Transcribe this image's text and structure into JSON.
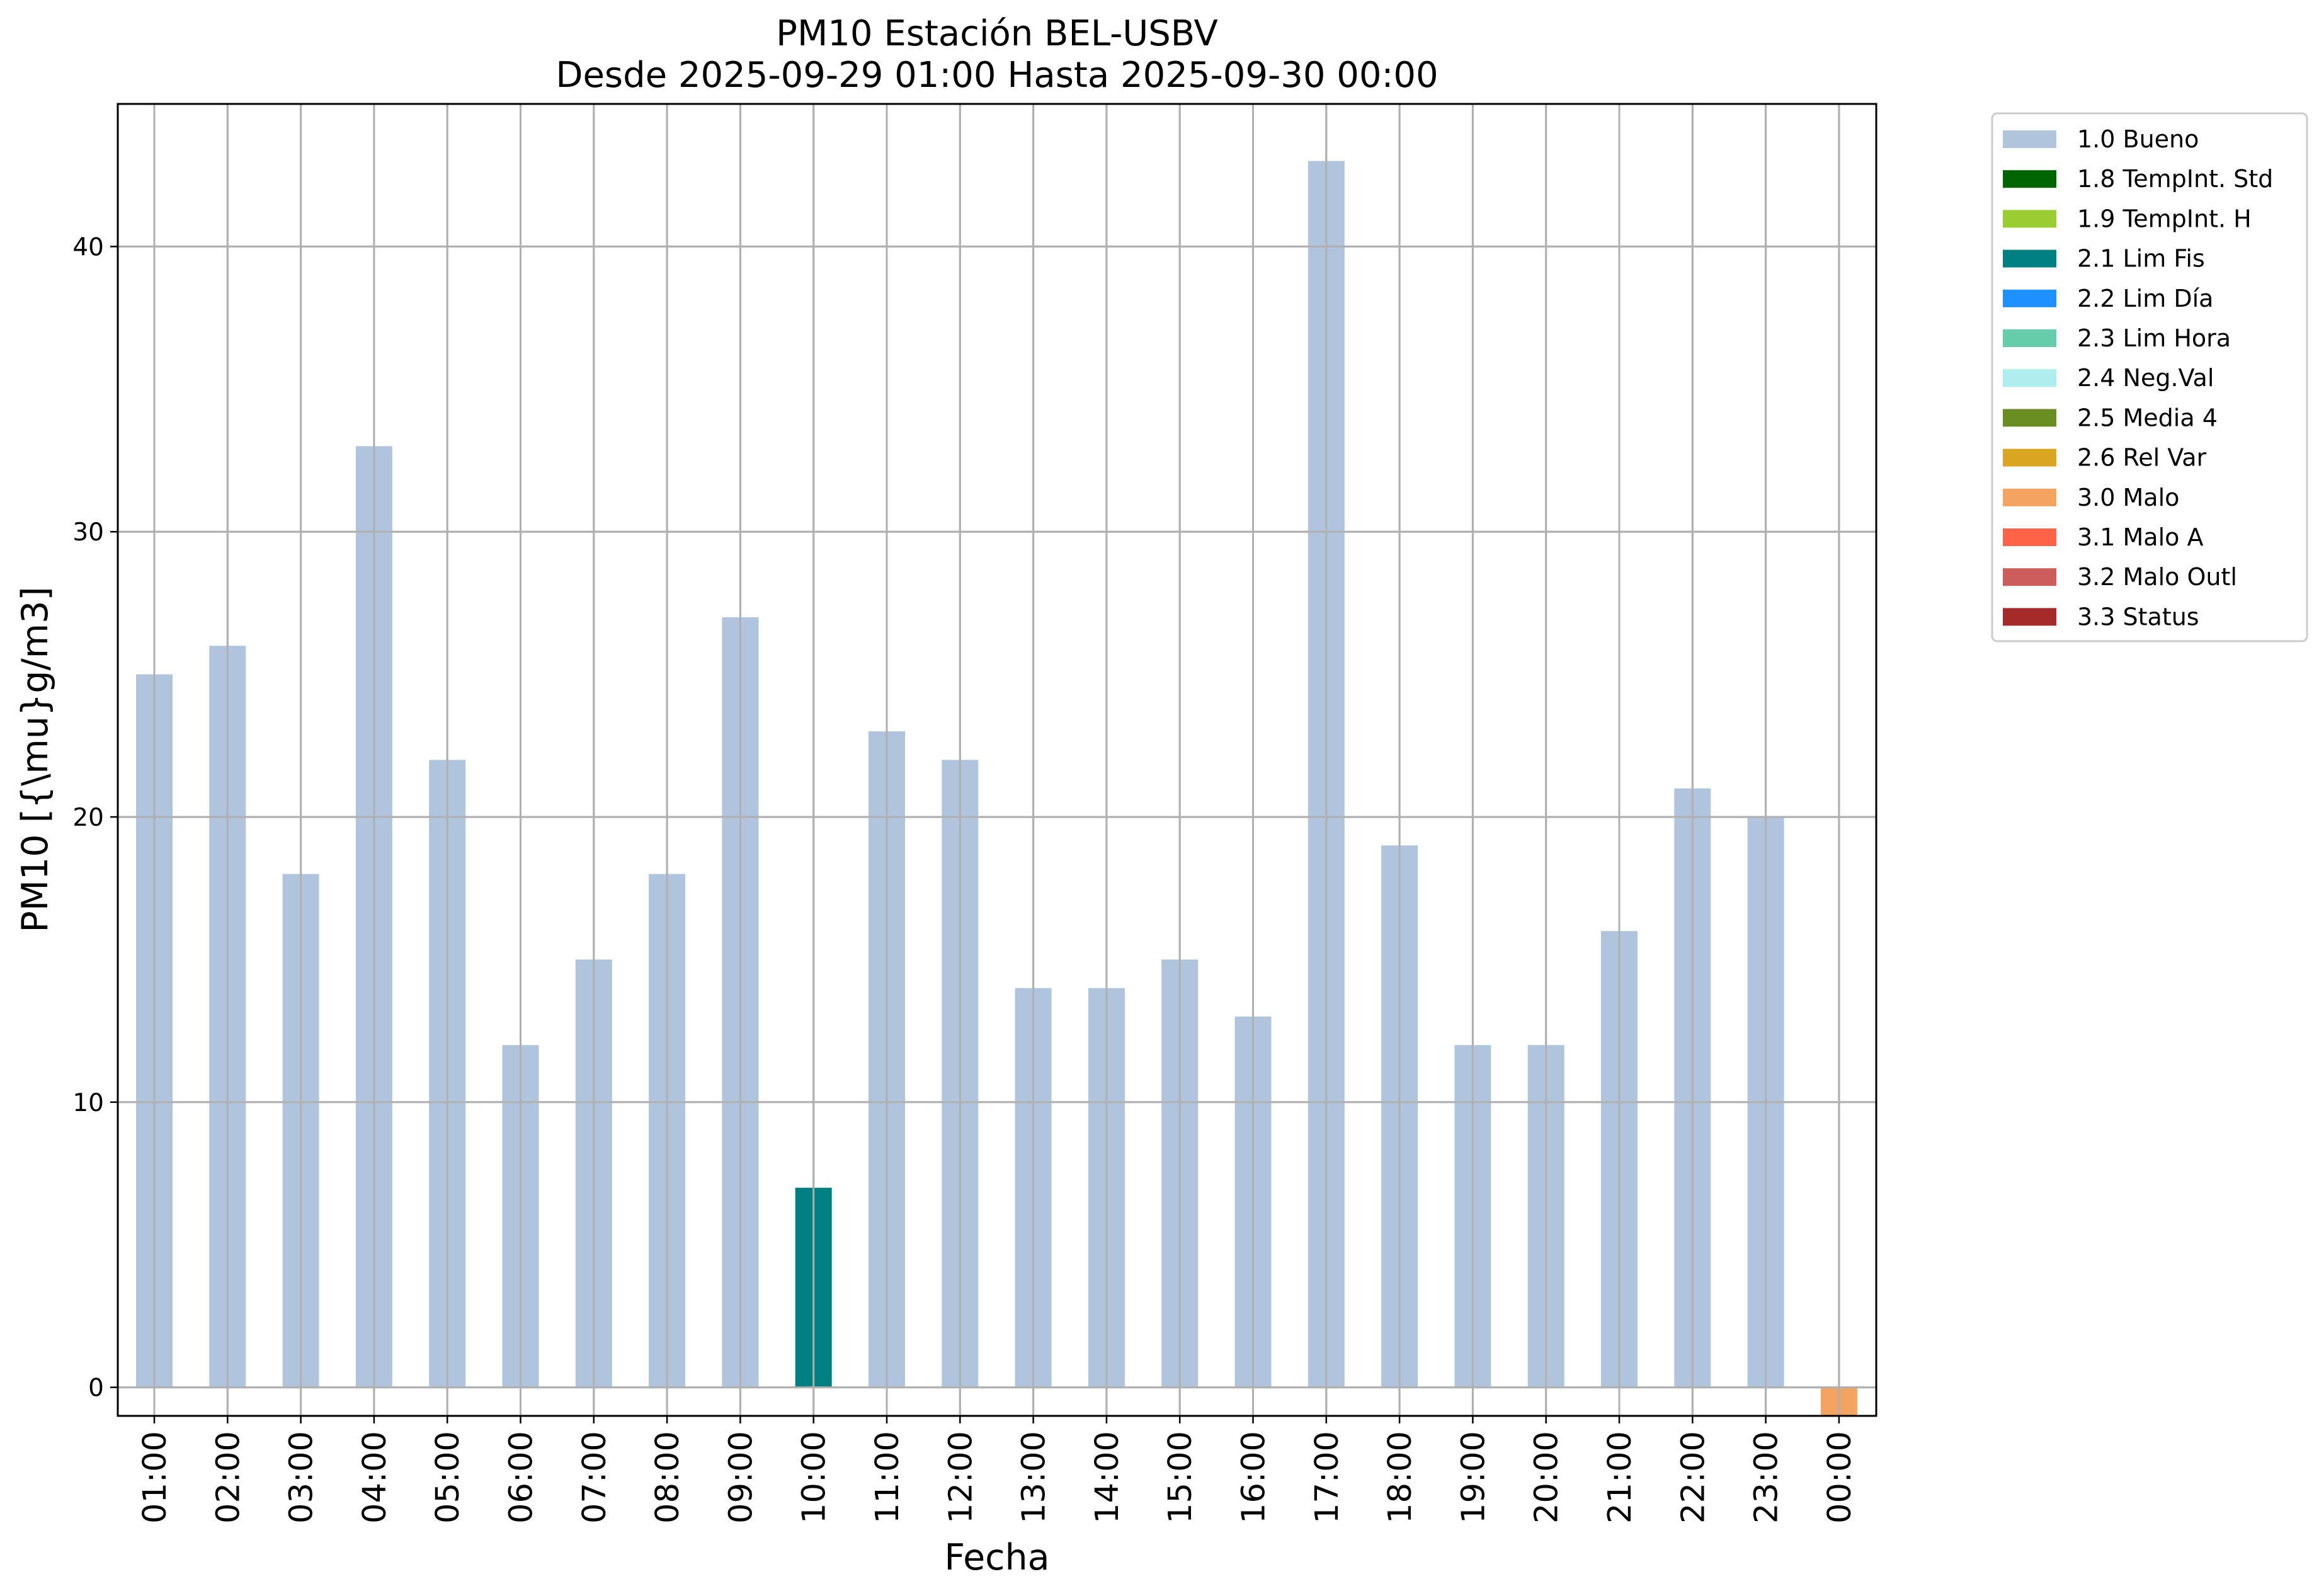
{
  "chart_data": {
    "type": "bar",
    "title": [
      "PM10 Estación BEL-USBV",
      "Desde 2025-09-29 01:00 Hasta 2025-09-30 00:00"
    ],
    "xlabel": "Fecha",
    "ylabel": "PM10 [{\\mu}g/m3]",
    "ylim": [
      -1,
      45
    ],
    "yticks": [
      0,
      10,
      20,
      30,
      40
    ],
    "grid": true,
    "legend_position": "outside right, top",
    "categories": [
      "01:00",
      "02:00",
      "03:00",
      "04:00",
      "05:00",
      "06:00",
      "07:00",
      "08:00",
      "09:00",
      "10:00",
      "11:00",
      "12:00",
      "13:00",
      "14:00",
      "15:00",
      "16:00",
      "17:00",
      "18:00",
      "19:00",
      "20:00",
      "21:00",
      "22:00",
      "23:00",
      "00:00"
    ],
    "values": [
      25,
      26,
      18,
      33,
      22,
      12,
      15,
      18,
      27,
      7,
      23,
      22,
      14,
      14,
      15,
      13,
      43,
      19,
      12,
      12,
      16,
      21,
      20,
      -1
    ],
    "flags": [
      "1.0 Bueno",
      "1.0 Bueno",
      "1.0 Bueno",
      "1.0 Bueno",
      "1.0 Bueno",
      "1.0 Bueno",
      "1.0 Bueno",
      "1.0 Bueno",
      "1.0 Bueno",
      "2.1 Lim Fis",
      "1.0 Bueno",
      "1.0 Bueno",
      "1.0 Bueno",
      "1.0 Bueno",
      "1.0 Bueno",
      "1.0 Bueno",
      "1.0 Bueno",
      "1.0 Bueno",
      "1.0 Bueno",
      "1.0 Bueno",
      "1.0 Bueno",
      "1.0 Bueno",
      "1.0 Bueno",
      "3.0 Malo"
    ],
    "legend": [
      {
        "name": "1.0 Bueno",
        "color": "#b0c4de"
      },
      {
        "name": "1.8 TempInt. Std",
        "color": "#006400"
      },
      {
        "name": "1.9 TempInt. H",
        "color": "#9acd32"
      },
      {
        "name": "2.1 Lim Fis",
        "color": "#008080"
      },
      {
        "name": "2.2 Lim Día",
        "color": "#1e90ff"
      },
      {
        "name": "2.3 Lim Hora",
        "color": "#66cdaa"
      },
      {
        "name": "2.4 Neg.Val",
        "color": "#afeeee"
      },
      {
        "name": "2.5 Media 4",
        "color": "#6b8e23"
      },
      {
        "name": "2.6 Rel Var",
        "color": "#daa520"
      },
      {
        "name": "3.0 Malo",
        "color": "#f4a460"
      },
      {
        "name": "3.1 Malo A",
        "color": "#ff6347"
      },
      {
        "name": "3.2 Malo Outl",
        "color": "#cd5c5c"
      },
      {
        "name": "3.3 Status",
        "color": "#a52a2a"
      }
    ]
  }
}
